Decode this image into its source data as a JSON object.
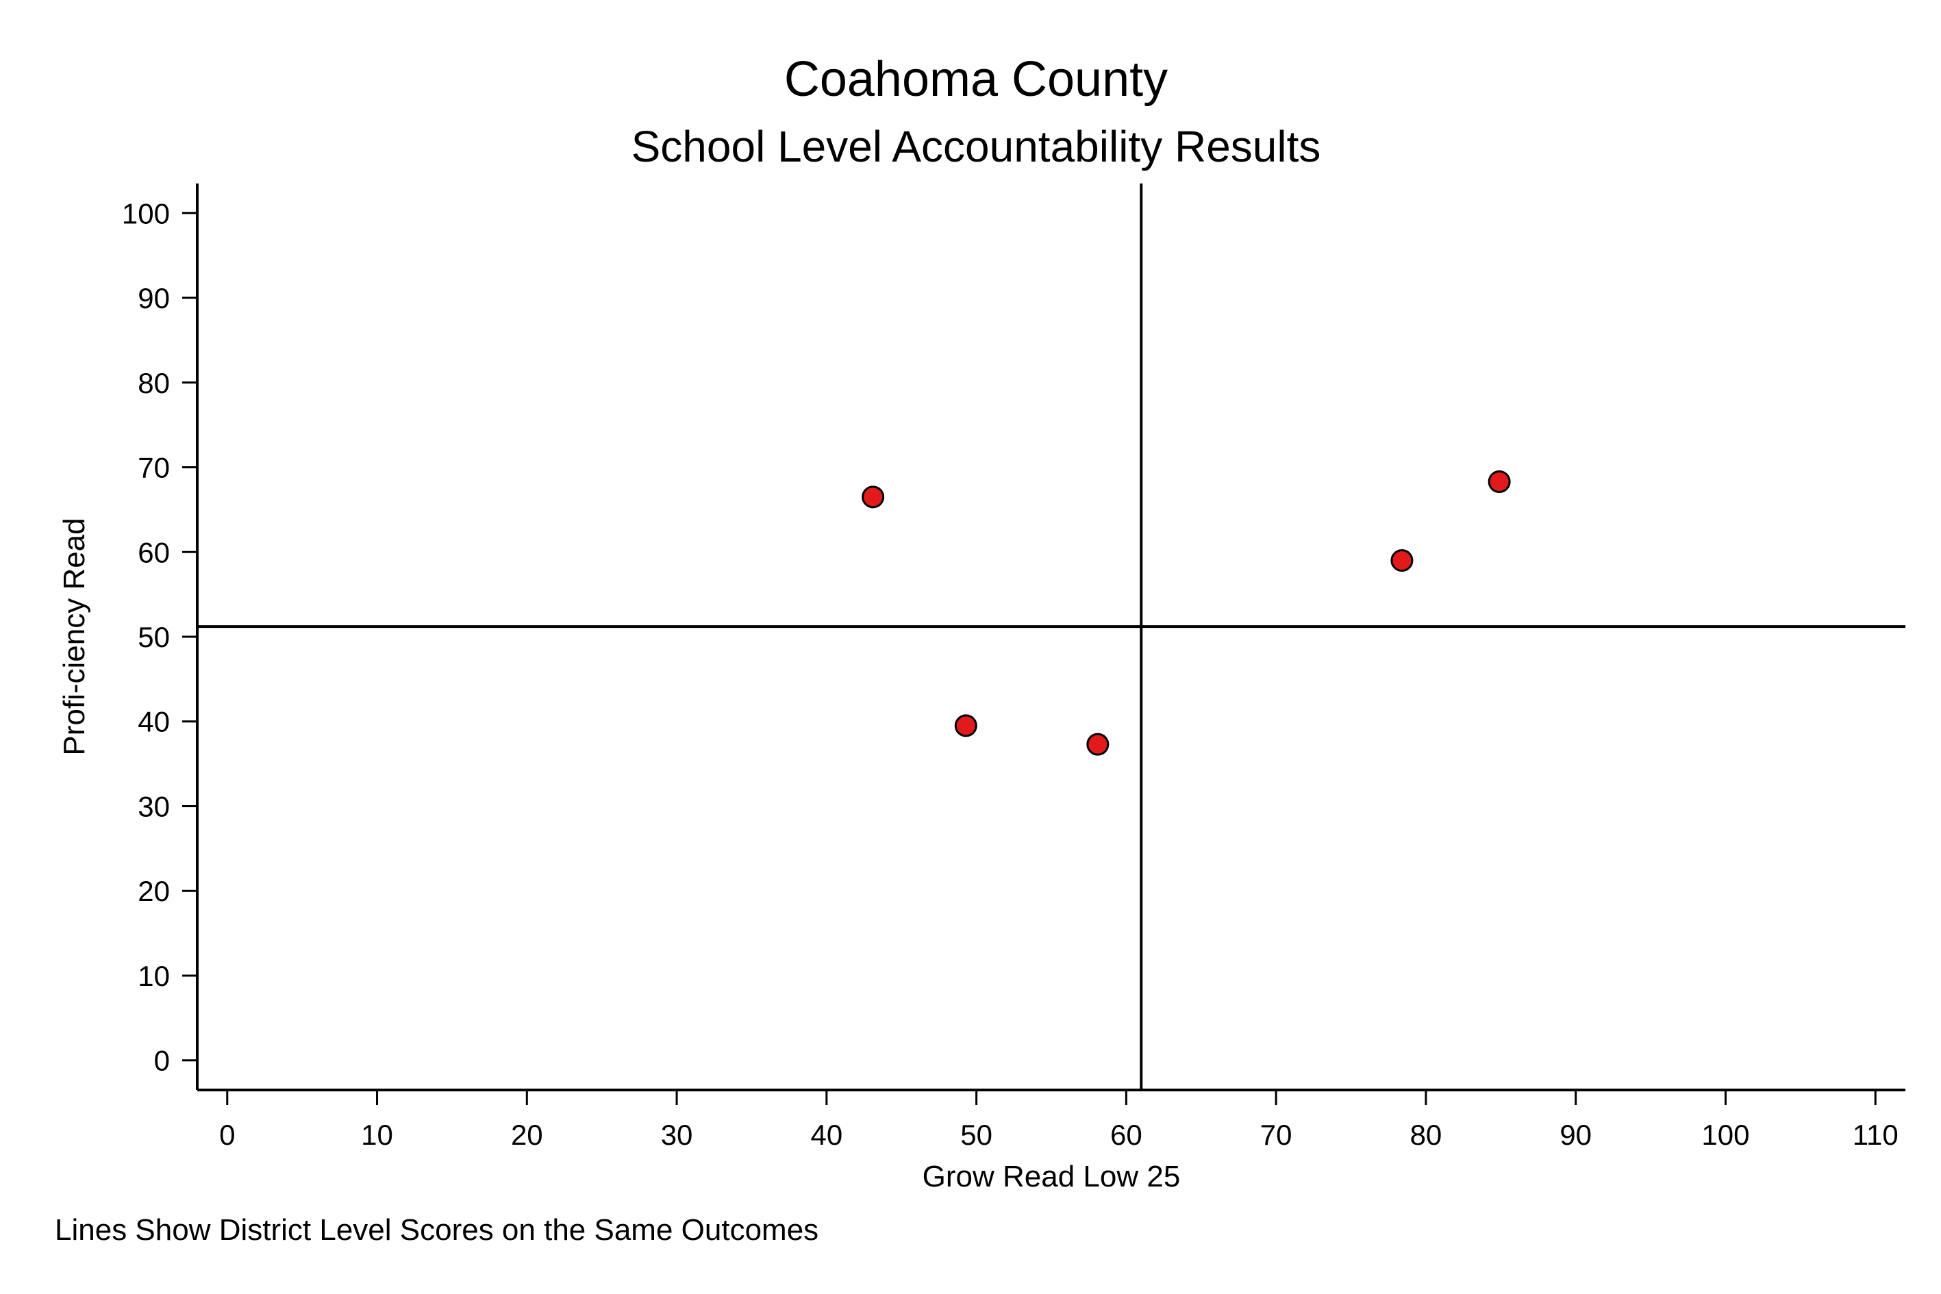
{
  "chart_data": {
    "type": "scatter",
    "title": "Coahoma County",
    "subtitle": "School Level Accountability Results",
    "xlabel": "Grow Read Low 25",
    "ylabel": "Profi-ciency Read",
    "note": "Lines Show District Level Scores on the Same Outcomes",
    "xlim": [
      -2,
      112
    ],
    "ylim": [
      -3.5,
      103.5
    ],
    "xticks": [
      0,
      10,
      20,
      30,
      40,
      50,
      60,
      70,
      80,
      90,
      100,
      110
    ],
    "yticks": [
      0,
      10,
      20,
      30,
      40,
      50,
      60,
      70,
      80,
      90,
      100
    ],
    "grid": false,
    "reference_lines": {
      "x": 61,
      "y": 51.2
    },
    "marker_color": "#e31a1c",
    "marker_edge_color": "#000000",
    "points": [
      {
        "x": 43.1,
        "y": 66.5
      },
      {
        "x": 84.9,
        "y": 68.3
      },
      {
        "x": 78.4,
        "y": 59.0
      },
      {
        "x": 49.3,
        "y": 39.5
      },
      {
        "x": 58.1,
        "y": 37.3
      }
    ]
  }
}
